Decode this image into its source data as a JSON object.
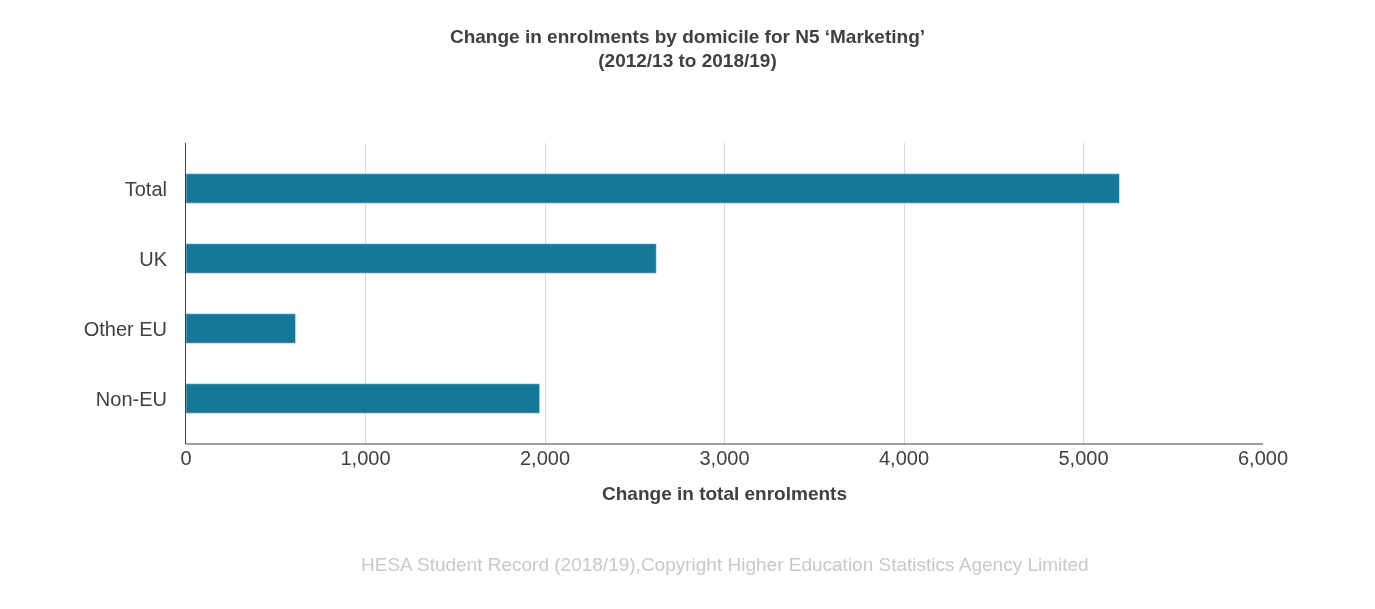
{
  "chart_data": {
    "type": "bar",
    "orientation": "horizontal",
    "title": "Change in enrolments by domicile for N5 ‘Marketing’\n(2012/13 to 2018/19)",
    "xlabel": "Change in total enrolments",
    "categories": [
      "Total",
      "UK",
      "Other EU",
      "Non-EU"
    ],
    "values": [
      5200,
      2620,
      610,
      1970
    ],
    "color": "#13789a",
    "xlim": [
      0,
      6000
    ],
    "xticks": [
      {
        "value": 0,
        "label": "0"
      },
      {
        "value": 1000,
        "label": "1,000"
      },
      {
        "value": 2000,
        "label": "2,000"
      },
      {
        "value": 3000,
        "label": "3,000"
      },
      {
        "value": 4000,
        "label": "4,000"
      },
      {
        "value": 5000,
        "label": "5,000"
      },
      {
        "value": 6000,
        "label": "6,000"
      }
    ],
    "grid": "x",
    "annotations": [
      "HESA Student Record (2018/19),Copyright Higher Education Statistics Agency Limited"
    ]
  }
}
